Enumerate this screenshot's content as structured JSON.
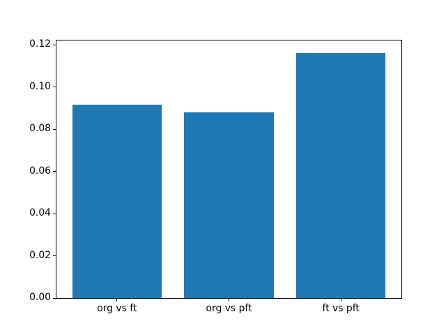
{
  "chart_data": {
    "type": "bar",
    "title": "",
    "xlabel": "",
    "ylabel": "",
    "categories": [
      "org vs ft",
      "org vs pft",
      "ft vs pft"
    ],
    "values": [
      0.0917,
      0.088,
      0.1161
    ],
    "bar_color": "#1f77b4",
    "bar_width_units": 0.8,
    "xlim": [
      -0.54,
      2.54
    ],
    "ylim": [
      0,
      0.122
    ],
    "ytick_values": [
      0.0,
      0.02,
      0.04,
      0.06,
      0.08,
      0.1,
      0.12
    ],
    "ytick_labels": [
      "0.00",
      "0.02",
      "0.04",
      "0.06",
      "0.08",
      "0.10",
      "0.12"
    ],
    "grid": false,
    "legend": null,
    "background_color": "#ffffff",
    "spine_color": "#000000",
    "tick_label_color": "#000000"
  }
}
